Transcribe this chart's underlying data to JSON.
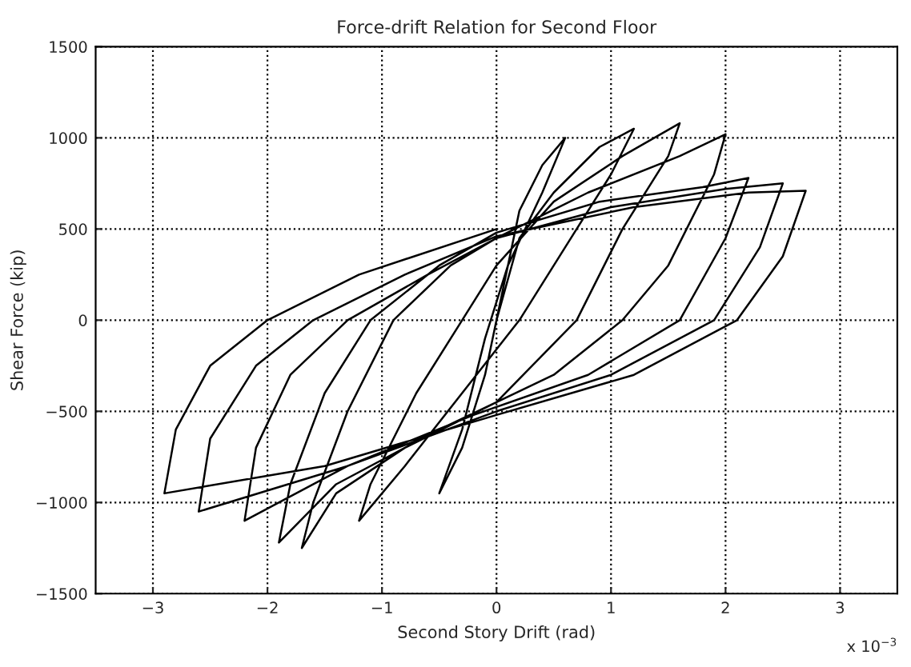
{
  "chart_data": {
    "type": "line",
    "title": "Force-drift Relation for Second Floor",
    "xlabel": "Second Story Drift (rad)",
    "ylabel": "Shear Force (kip)",
    "annotations": [
      "x 10$^{−3}$"
    ],
    "series": [
      {
        "color": "#000000",
        "x": [
          0,
          0.1,
          0.2,
          0.4,
          0.6,
          0.4,
          0.1,
          -0.1,
          -0.3,
          -0.5,
          -0.3,
          -0.1,
          0.0,
          0.2,
          0.5,
          0.9,
          1.2,
          1.0,
          0.6,
          0.2,
          -0.3,
          -0.8,
          -1.2,
          -1.1,
          -0.7,
          -0.3,
          0,
          0.5,
          1.1,
          1.6,
          1.5,
          1.1,
          0.7,
          0.0,
          -0.8,
          -1.4,
          -1.7,
          -1.6,
          -1.3,
          -0.9,
          -0.4,
          0,
          0.8,
          1.6,
          2.0,
          1.9,
          1.5,
          1.1,
          0.5,
          -0.5,
          -1.4,
          -1.9,
          -1.8,
          -1.5,
          -1.1,
          -0.5,
          0,
          0.9,
          1.8,
          2.2,
          2.0,
          1.6,
          0.8,
          -0.2,
          -1.3,
          -2.2,
          -2.1,
          -1.8,
          -1.3,
          -0.6,
          0,
          1.0,
          2.0,
          2.5,
          2.3,
          1.9,
          1.0,
          0,
          -1.3,
          -2.6,
          -2.5,
          -2.1,
          -1.6,
          -0.8,
          0,
          1.2,
          2.2,
          2.7,
          2.5,
          2.1,
          1.2,
          0,
          -1.5,
          -2.9,
          -2.8,
          -2.5,
          -2.0,
          -1.2,
          0
        ],
        "values": [
          0,
          300,
          600,
          850,
          1000,
          700,
          300,
          -100,
          -600,
          -950,
          -700,
          -300,
          0,
          450,
          700,
          950,
          1050,
          800,
          400,
          0,
          -400,
          -800,
          -1100,
          -900,
          -400,
          0,
          300,
          650,
          900,
          1080,
          900,
          500,
          0,
          -450,
          -700,
          -950,
          -1250,
          -1000,
          -500,
          0,
          300,
          450,
          700,
          900,
          1020,
          800,
          300,
          0,
          -300,
          -600,
          -900,
          -1220,
          -900,
          -400,
          0,
          300,
          480,
          650,
          730,
          780,
          450,
          0,
          -300,
          -520,
          -800,
          -1100,
          -700,
          -300,
          0,
          250,
          450,
          620,
          720,
          750,
          400,
          0,
          -300,
          -500,
          -800,
          -1050,
          -650,
          -250,
          0,
          250,
          460,
          620,
          700,
          710,
          350,
          0,
          -300,
          -520,
          -800,
          -950,
          -600,
          -250,
          0,
          250,
          500
        ]
      }
    ],
    "xlim": [
      -3.5,
      3.5
    ],
    "xticks": [
      -3,
      -2,
      -1,
      0,
      1,
      2,
      3
    ],
    "ylim": [
      -1500,
      1500
    ],
    "yticks": [
      -1500,
      -1000,
      -500,
      0,
      500,
      1000,
      1500
    ],
    "grid": true,
    "line_style": "solid",
    "marker": "none",
    "legend": false
  }
}
